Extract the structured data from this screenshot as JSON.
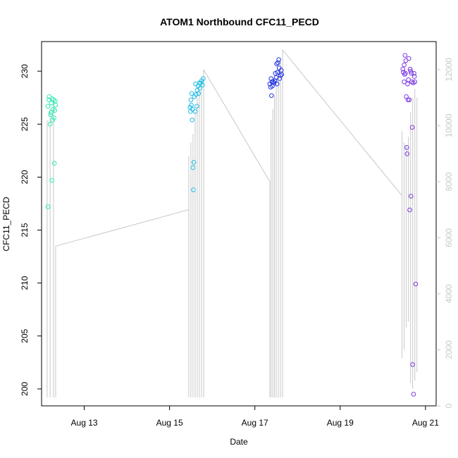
{
  "chart_data": {
    "type": "scatter",
    "title": "ATOM1 Northbound CFC11_PECD",
    "xlabel": "Date",
    "ylabel": "CFC11_PECD",
    "x_ticks": [
      {
        "day": 13,
        "label": "Aug 13"
      },
      {
        "day": 15,
        "label": "Aug 15"
      },
      {
        "day": 17,
        "label": "Aug 17"
      },
      {
        "day": 19,
        "label": "Aug 19"
      },
      {
        "day": 21,
        "label": "Aug 21"
      }
    ],
    "xlim": [
      12.0,
      21.25
    ],
    "ylim": [
      198.4,
      232.8
    ],
    "y_ticks": [
      200,
      205,
      210,
      215,
      220,
      225,
      230
    ],
    "y2lim": [
      0,
      13000
    ],
    "y2_ticks": [
      0,
      2000,
      4000,
      6000,
      8000,
      10000,
      12000
    ],
    "y2_color": "#c8c8c8",
    "grid": false,
    "point_style": "open-circle",
    "series": [
      {
        "color": "#2ee8b0",
        "points": [
          {
            "x": 12.15,
            "y": 217.2
          },
          {
            "x": 12.15,
            "y": 226.7
          },
          {
            "x": 12.17,
            "y": 227.3
          },
          {
            "x": 12.18,
            "y": 227.6
          },
          {
            "x": 12.2,
            "y": 225.0
          },
          {
            "x": 12.21,
            "y": 225.9
          },
          {
            "x": 12.22,
            "y": 226.1
          },
          {
            "x": 12.23,
            "y": 227.0
          },
          {
            "x": 12.24,
            "y": 219.7
          },
          {
            "x": 12.25,
            "y": 227.4
          },
          {
            "x": 12.26,
            "y": 225.4
          },
          {
            "x": 12.27,
            "y": 226.4
          },
          {
            "x": 12.28,
            "y": 227.3
          },
          {
            "x": 12.29,
            "y": 225.6
          },
          {
            "x": 12.3,
            "y": 221.3
          },
          {
            "x": 12.31,
            "y": 226.3
          },
          {
            "x": 12.32,
            "y": 227.2
          },
          {
            "x": 12.33,
            "y": 226.8
          }
        ]
      },
      {
        "color": "#22bde6",
        "points": [
          {
            "x": 15.48,
            "y": 226.6
          },
          {
            "x": 15.49,
            "y": 226.2
          },
          {
            "x": 15.5,
            "y": 227.3
          },
          {
            "x": 15.51,
            "y": 226.8
          },
          {
            "x": 15.52,
            "y": 227.9
          },
          {
            "x": 15.53,
            "y": 225.4
          },
          {
            "x": 15.54,
            "y": 226.4
          },
          {
            "x": 15.55,
            "y": 220.9
          },
          {
            "x": 15.56,
            "y": 218.8
          },
          {
            "x": 15.57,
            "y": 221.4
          },
          {
            "x": 15.58,
            "y": 227.6
          },
          {
            "x": 15.6,
            "y": 226.2
          },
          {
            "x": 15.61,
            "y": 228.8
          },
          {
            "x": 15.62,
            "y": 227.8
          },
          {
            "x": 15.64,
            "y": 226.7
          },
          {
            "x": 15.65,
            "y": 228.2
          },
          {
            "x": 15.67,
            "y": 228.6
          },
          {
            "x": 15.68,
            "y": 227.9
          },
          {
            "x": 15.7,
            "y": 228.9
          },
          {
            "x": 15.71,
            "y": 228.4
          },
          {
            "x": 15.73,
            "y": 228.9
          },
          {
            "x": 15.75,
            "y": 229.1
          },
          {
            "x": 15.77,
            "y": 228.7
          },
          {
            "x": 15.79,
            "y": 229.3
          }
        ]
      },
      {
        "color": "#2438e0",
        "points": [
          {
            "x": 17.35,
            "y": 228.8
          },
          {
            "x": 17.37,
            "y": 228.5
          },
          {
            "x": 17.38,
            "y": 229.3
          },
          {
            "x": 17.39,
            "y": 227.7
          },
          {
            "x": 17.4,
            "y": 229.0
          },
          {
            "x": 17.41,
            "y": 228.6
          },
          {
            "x": 17.43,
            "y": 229.0
          },
          {
            "x": 17.45,
            "y": 228.9
          },
          {
            "x": 17.47,
            "y": 229.1
          },
          {
            "x": 17.48,
            "y": 229.8
          },
          {
            "x": 17.5,
            "y": 229.4
          },
          {
            "x": 17.51,
            "y": 230.7
          },
          {
            "x": 17.52,
            "y": 228.8
          },
          {
            "x": 17.53,
            "y": 229.9
          },
          {
            "x": 17.54,
            "y": 230.8
          },
          {
            "x": 17.56,
            "y": 231.1
          },
          {
            "x": 17.57,
            "y": 230.3
          },
          {
            "x": 17.58,
            "y": 229.3
          },
          {
            "x": 17.6,
            "y": 229.6
          },
          {
            "x": 17.62,
            "y": 230.1
          },
          {
            "x": 17.63,
            "y": 229.7
          }
        ]
      },
      {
        "color": "#7d3ae0",
        "points": [
          {
            "x": 20.47,
            "y": 230.2
          },
          {
            "x": 20.48,
            "y": 229.9
          },
          {
            "x": 20.5,
            "y": 229.0
          },
          {
            "x": 20.5,
            "y": 230.6
          },
          {
            "x": 20.51,
            "y": 229.7
          },
          {
            "x": 20.52,
            "y": 231.5
          },
          {
            "x": 20.53,
            "y": 229.8
          },
          {
            "x": 20.54,
            "y": 231.0
          },
          {
            "x": 20.55,
            "y": 227.6
          },
          {
            "x": 20.56,
            "y": 222.8
          },
          {
            "x": 20.57,
            "y": 222.2
          },
          {
            "x": 20.58,
            "y": 228.8
          },
          {
            "x": 20.59,
            "y": 227.3
          },
          {
            "x": 20.6,
            "y": 229.2
          },
          {
            "x": 20.61,
            "y": 231.2
          },
          {
            "x": 20.62,
            "y": 227.3
          },
          {
            "x": 20.63,
            "y": 216.9
          },
          {
            "x": 20.64,
            "y": 230.2
          },
          {
            "x": 20.65,
            "y": 230.0
          },
          {
            "x": 20.66,
            "y": 218.2
          },
          {
            "x": 20.67,
            "y": 229.8
          },
          {
            "x": 20.68,
            "y": 229.0
          },
          {
            "x": 20.69,
            "y": 224.7
          },
          {
            "x": 20.7,
            "y": 202.3
          },
          {
            "x": 20.71,
            "y": 228.9
          },
          {
            "x": 20.72,
            "y": 199.5
          },
          {
            "x": 20.73,
            "y": 229.8
          },
          {
            "x": 20.74,
            "y": 229.5
          },
          {
            "x": 20.75,
            "y": 229.0
          },
          {
            "x": 20.77,
            "y": 209.9
          }
        ]
      }
    ],
    "secondary_line": {
      "color": "#c8c8c8",
      "axis": "right",
      "spikes": [
        {
          "x": 12.13,
          "y0": 300,
          "y1": 10200
        },
        {
          "x": 12.2,
          "y0": 300,
          "y1": 10600
        },
        {
          "x": 12.28,
          "y0": 300,
          "y1": 10900
        },
        {
          "x": 12.33,
          "y0": 300,
          "y1": 5700
        },
        {
          "x": 15.45,
          "y0": 300,
          "y1": 8900
        },
        {
          "x": 15.5,
          "y0": 300,
          "y1": 9400
        },
        {
          "x": 15.55,
          "y0": 300,
          "y1": 9700
        },
        {
          "x": 15.6,
          "y0": 300,
          "y1": 10500
        },
        {
          "x": 15.65,
          "y0": 300,
          "y1": 11000
        },
        {
          "x": 15.7,
          "y0": 300,
          "y1": 11200
        },
        {
          "x": 15.75,
          "y0": 300,
          "y1": 11600
        },
        {
          "x": 15.8,
          "y0": 300,
          "y1": 12000
        },
        {
          "x": 17.35,
          "y0": 300,
          "y1": 8000
        },
        {
          "x": 17.38,
          "y0": 300,
          "y1": 10200
        },
        {
          "x": 17.42,
          "y0": 300,
          "y1": 10600
        },
        {
          "x": 17.46,
          "y0": 300,
          "y1": 11100
        },
        {
          "x": 17.5,
          "y0": 300,
          "y1": 11700
        },
        {
          "x": 17.55,
          "y0": 300,
          "y1": 12000
        },
        {
          "x": 17.6,
          "y0": 300,
          "y1": 12300
        },
        {
          "x": 17.65,
          "y0": 300,
          "y1": 12700
        },
        {
          "x": 20.45,
          "y0": 1700,
          "y1": 9800
        },
        {
          "x": 20.5,
          "y0": 2000,
          "y1": 9400
        },
        {
          "x": 20.55,
          "y0": 2800,
          "y1": 9300
        },
        {
          "x": 20.6,
          "y0": 3000,
          "y1": 9600
        },
        {
          "x": 20.65,
          "y0": 800,
          "y1": 10500
        },
        {
          "x": 20.7,
          "y0": 600,
          "y1": 11000
        },
        {
          "x": 20.75,
          "y0": 900,
          "y1": 11300
        },
        {
          "x": 20.8,
          "y0": 1200,
          "y1": 11000
        }
      ],
      "connectors": [
        {
          "x0": 12.33,
          "y0": 5700,
          "x1": 15.45,
          "y1": 7000
        },
        {
          "x0": 15.8,
          "y0": 12000,
          "x1": 17.35,
          "y1": 8000
        },
        {
          "x0": 17.65,
          "y0": 12700,
          "x1": 20.45,
          "y1": 7500
        }
      ]
    }
  }
}
